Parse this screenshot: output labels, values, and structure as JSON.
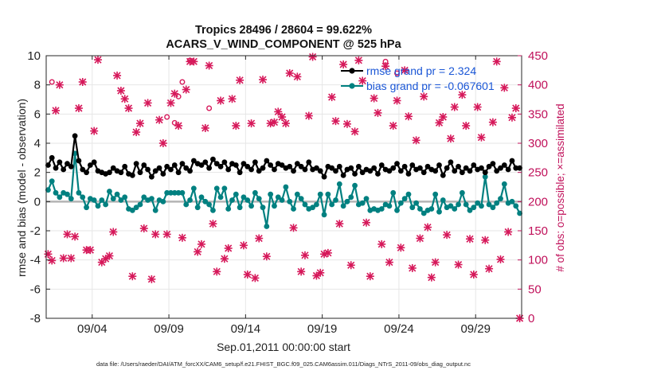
{
  "chart_data": {
    "type": "line",
    "title": "Tropics 28496 / 28604 = 99.622%",
    "subtitle": "ACARS_V_WIND_COMPONENT @ 525 hPa",
    "xlabel": "Sep.01,2011 00:00:00 start",
    "ylabel": "rmse and bias (model - observation)",
    "y2label": "# of obs: o=possible; ×=assimilated",
    "xlim": [
      0,
      31
    ],
    "ylim": [
      -8,
      10
    ],
    "y2lim": [
      0,
      450
    ],
    "x_ticks": [
      3,
      8,
      13,
      18,
      23,
      28
    ],
    "x_tick_labels": [
      "09/04",
      "09/09",
      "09/14",
      "09/19",
      "09/24",
      "09/29"
    ],
    "y_ticks": [
      -8,
      -6,
      -4,
      -2,
      0,
      2,
      4,
      6,
      8,
      10
    ],
    "y2_ticks": [
      0,
      50,
      100,
      150,
      200,
      250,
      300,
      350,
      400,
      450
    ],
    "legend": [
      {
        "label": "rmse grand pr = 2.324",
        "color": "#000000"
      },
      {
        "label": "bias grand pr = -0.067601",
        "color": "#008080"
      }
    ],
    "footnote": "data file: /Users/raeder/DAI/ATM_forcXX/CAM6_setup/f.e21.FHIST_BGC.f09_025.CAM6assim.011/Diags_NTrS_2011-09/obs_diag_output.nc",
    "colors": {
      "rmse": "#000000",
      "bias": "#008080",
      "obs": "#d6185a",
      "zero_line": "#b4b4b4"
    },
    "series": [
      {
        "name": "rmse",
        "x": [
          0.125,
          0.375,
          0.625,
          0.875,
          1.125,
          1.375,
          1.625,
          1.875,
          2.125,
          2.375,
          2.625,
          2.875,
          3.125,
          3.375,
          3.625,
          3.875,
          4.125,
          4.375,
          4.625,
          4.875,
          5.125,
          5.375,
          5.625,
          5.875,
          6.125,
          6.375,
          6.625,
          6.875,
          7.125,
          7.375,
          7.625,
          7.875,
          8.125,
          8.375,
          8.625,
          8.875,
          9.125,
          9.375,
          9.625,
          9.875,
          10.125,
          10.375,
          10.625,
          10.875,
          11.125,
          11.375,
          11.625,
          11.875,
          12.125,
          12.375,
          12.625,
          12.875,
          13.125,
          13.375,
          13.625,
          13.875,
          14.125,
          14.375,
          14.625,
          14.875,
          15.125,
          15.375,
          15.625,
          15.875,
          16.125,
          16.375,
          16.625,
          16.875,
          17.125,
          17.375,
          17.625,
          17.875,
          18.125,
          18.375,
          18.625,
          18.875,
          19.125,
          19.375,
          19.625,
          19.875,
          20.125,
          20.375,
          20.625,
          20.875,
          21.125,
          21.375,
          21.625,
          21.875,
          22.125,
          22.375,
          22.625,
          22.875,
          23.125,
          23.375,
          23.625,
          23.875,
          24.125,
          24.375,
          24.625,
          24.875,
          25.125,
          25.375,
          25.625,
          25.875,
          26.125,
          26.375,
          26.625,
          26.875,
          27.125,
          27.375,
          27.625,
          27.875,
          28.125,
          28.375,
          28.625,
          28.875,
          29.125,
          29.375,
          29.625,
          29.875,
          30.125,
          30.375,
          30.625,
          30.875
        ],
        "values": [
          2.5,
          3.0,
          2.3,
          2.7,
          2.2,
          2.6,
          2.4,
          4.5,
          2.8,
          2.2,
          2.0,
          2.5,
          2.7,
          2.1,
          2.0,
          1.9,
          2.0,
          2.3,
          2.1,
          2.0,
          2.4,
          1.9,
          1.8,
          2.6,
          2.0,
          2.5,
          2.2,
          1.7,
          2.1,
          2.3,
          1.9,
          2.4,
          2.2,
          2.5,
          2.0,
          2.6,
          2.3,
          2.1,
          2.8,
          2.6,
          2.5,
          2.7,
          2.3,
          2.9,
          2.6,
          2.4,
          2.7,
          2.2,
          2.6,
          2.5,
          2.0,
          2.6,
          2.4,
          2.2,
          2.7,
          2.1,
          2.3,
          2.8,
          2.5,
          2.2,
          2.6,
          2.5,
          2.3,
          2.4,
          2.1,
          2.6,
          2.4,
          2.2,
          2.7,
          2.2,
          2.3,
          2.1,
          1.7,
          2.4,
          2.3,
          2.1,
          2.4,
          1.8,
          2.2,
          2.3,
          1.9,
          2.4,
          2.0,
          2.2,
          2.1,
          2.3,
          1.9,
          2.5,
          2.2,
          2.1,
          2.3,
          2.6,
          2.1,
          2.4,
          1.9,
          2.5,
          2.2,
          2.3,
          2.0,
          2.4,
          2.2,
          2.1,
          2.5,
          1.8,
          2.3,
          2.7,
          2.1,
          2.4,
          2.0,
          2.3,
          2.1,
          2.5,
          2.2,
          2.3,
          2.0,
          2.4,
          2.6,
          2.1,
          2.3,
          2.5,
          2.2,
          2.8,
          2.3,
          2.3
        ]
      },
      {
        "name": "bias",
        "x": [
          0.125,
          0.375,
          0.625,
          0.875,
          1.125,
          1.375,
          1.625,
          1.875,
          2.125,
          2.375,
          2.625,
          2.875,
          3.125,
          3.375,
          3.625,
          3.875,
          4.125,
          4.375,
          4.625,
          4.875,
          5.125,
          5.375,
          5.625,
          5.875,
          6.125,
          6.375,
          6.625,
          6.875,
          7.125,
          7.375,
          7.625,
          7.875,
          8.125,
          8.375,
          8.625,
          8.875,
          9.125,
          9.375,
          9.625,
          9.875,
          10.125,
          10.375,
          10.625,
          10.875,
          11.125,
          11.375,
          11.625,
          11.875,
          12.125,
          12.375,
          12.625,
          12.875,
          13.125,
          13.375,
          13.625,
          13.875,
          14.125,
          14.375,
          14.625,
          14.875,
          15.125,
          15.375,
          15.625,
          15.875,
          16.125,
          16.375,
          16.625,
          16.875,
          17.125,
          17.375,
          17.625,
          17.875,
          18.125,
          18.375,
          18.625,
          18.875,
          19.125,
          19.375,
          19.625,
          19.875,
          20.125,
          20.375,
          20.625,
          20.875,
          21.125,
          21.375,
          21.625,
          21.875,
          22.125,
          22.375,
          22.625,
          22.875,
          23.125,
          23.375,
          23.625,
          23.875,
          24.125,
          24.375,
          24.625,
          24.875,
          25.125,
          25.375,
          25.625,
          25.875,
          26.125,
          26.375,
          26.625,
          26.875,
          27.125,
          27.375,
          27.625,
          27.875,
          28.125,
          28.375,
          28.625,
          28.875,
          29.125,
          29.375,
          29.625,
          29.875,
          30.125,
          30.375,
          30.625,
          30.875
        ],
        "values": [
          0.8,
          1.4,
          0.6,
          0.3,
          0.6,
          0.5,
          0.2,
          3.3,
          0.6,
          0.3,
          -0.4,
          0.2,
          0.1,
          -0.3,
          0.1,
          -0.2,
          0.7,
          0.2,
          0.5,
          0.1,
          0.3,
          -0.5,
          -0.6,
          -0.4,
          -0.2,
          0.3,
          0.1,
          0.2,
          -0.6,
          0.1,
          0.0,
          0.6,
          0.6,
          0.6,
          0.6,
          0.6,
          -0.2,
          0.1,
          0.9,
          -0.4,
          0.3,
          0.0,
          -0.2,
          -0.6,
          0.9,
          0.3,
          0.9,
          -0.5,
          0.1,
          0.5,
          -0.4,
          0.3,
          0.1,
          -0.3,
          0.6,
          0.2,
          -0.4,
          -1.7,
          0.5,
          -0.3,
          0.3,
          0.1,
          1.0,
          0.0,
          -0.5,
          0.5,
          0.2,
          -0.2,
          -0.5,
          -0.4,
          -0.2,
          0.5,
          -0.9,
          0.5,
          -0.2,
          0.1,
          1.2,
          -0.3,
          0.0,
          0.3,
          1.1,
          -0.2,
          -0.1,
          0.2,
          -0.6,
          -0.5,
          -0.6,
          -0.5,
          -0.2,
          -0.3,
          0.6,
          -0.6,
          -0.1,
          0.2,
          0.5,
          -0.4,
          -0.1,
          -0.5,
          -0.8,
          -0.6,
          -0.5,
          0.5,
          -0.7,
          0.1,
          -0.4,
          -0.3,
          -0.5,
          -0.2,
          0.6,
          -0.2,
          -0.6,
          -0.4,
          -0.1,
          -0.3,
          1.7,
          -0.2,
          -0.4,
          -0.1,
          0.2,
          1.2,
          -0.1,
          0.0,
          -0.3,
          -0.8
        ]
      },
      {
        "name": "# of obs (o=possible; ×=assimilated)",
        "axis": "right",
        "x": [
          0.125,
          0.375,
          0.625,
          0.875,
          1.125,
          1.375,
          1.625,
          1.875,
          2.125,
          2.375,
          2.625,
          2.875,
          3.125,
          3.375,
          3.625,
          3.875,
          4.125,
          4.375,
          4.625,
          4.875,
          5.125,
          5.375,
          5.625,
          5.875,
          6.125,
          6.375,
          6.625,
          6.875,
          7.125,
          7.375,
          7.625,
          7.875,
          8.125,
          8.375,
          8.625,
          8.875,
          9.125,
          9.375,
          9.625,
          9.875,
          10.125,
          10.375,
          10.625,
          10.875,
          11.125,
          11.375,
          11.625,
          11.875,
          12.125,
          12.375,
          12.625,
          12.875,
          13.125,
          13.375,
          13.625,
          13.875,
          14.125,
          14.375,
          14.625,
          14.875,
          15.125,
          15.375,
          15.625,
          15.875,
          16.125,
          16.375,
          16.625,
          16.875,
          17.125,
          17.375,
          17.625,
          17.875,
          18.125,
          18.375,
          18.625,
          18.875,
          19.125,
          19.375,
          19.625,
          19.875,
          20.125,
          20.375,
          20.625,
          20.875,
          21.125,
          21.375,
          21.625,
          21.875,
          22.125,
          22.375,
          22.625,
          22.875,
          23.125,
          23.375,
          23.625,
          23.875,
          24.125,
          24.375,
          24.625,
          24.875,
          25.125,
          25.375,
          25.625,
          25.875,
          26.125,
          26.375,
          26.625,
          26.875,
          27.125,
          27.375,
          27.625,
          27.875,
          28.125,
          28.375,
          28.625,
          28.875,
          29.125,
          29.375,
          29.625,
          29.875,
          30.125,
          30.375,
          30.625,
          30.875
        ],
        "values": [
          110,
          99,
          356,
          400,
          103,
          144,
          103,
          140,
          360,
          405,
          117,
          117,
          321,
          443,
          96,
          102,
          107,
          148,
          416,
          390,
          376,
          360,
          72,
          319,
          334,
          154,
          369,
          67,
          144,
          340,
          300,
          144,
          369,
          385,
          330,
          138,
          392,
          440,
          440,
          114,
          127,
          326,
          433,
          162,
          80,
          373,
          102,
          120,
          376,
          330,
          408,
          125,
          75,
          334,
          69,
          137,
          409,
          106,
          334,
          336,
          354,
          345,
          334,
          420,
          155,
          414,
          80,
          108,
          347,
          448,
          73,
          78,
          110,
          112,
          379,
          338,
          162,
          435,
          333,
          91,
          320,
          442,
          407,
          164,
          72,
          377,
          352,
          127,
          432,
          96,
          330,
          373,
          121,
          425,
          346,
          86,
          305,
          137,
          380,
          156,
          70,
          96,
          335,
          345,
          143,
          308,
          362,
          92,
          383,
          330,
          136,
          75,
          362,
          310,
          134,
          85,
          336,
          440,
          101,
          395,
          148,
          344,
          360,
          0
        ],
        "possible_only": [
          [
            0.375,
            405
          ],
          [
            8.625,
            380
          ],
          [
            8.375,
            335
          ],
          [
            7.875,
            345
          ],
          [
            8.875,
            405
          ],
          [
            9.375,
            442
          ],
          [
            10.625,
            360
          ],
          [
            22.125,
            440
          ],
          [
            22.875,
            420
          ]
        ]
      }
    ]
  }
}
